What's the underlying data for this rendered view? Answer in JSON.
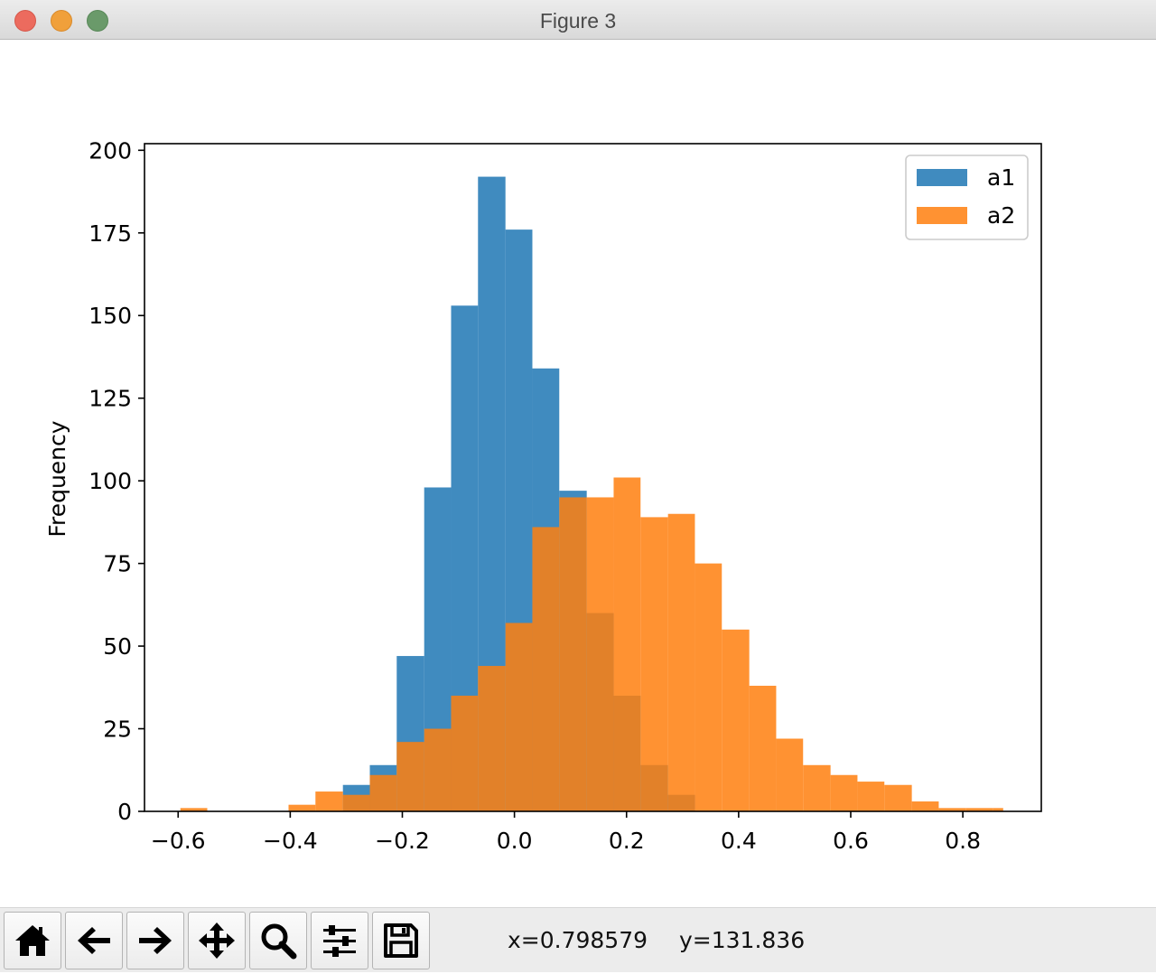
{
  "window": {
    "title": "Figure 3"
  },
  "toolbar": {
    "buttons": [
      {
        "name": "home-icon"
      },
      {
        "name": "back-arrow-icon"
      },
      {
        "name": "forward-arrow-icon"
      },
      {
        "name": "pan-move-icon"
      },
      {
        "name": "zoom-magnifier-icon"
      },
      {
        "name": "configure-subplots-icon"
      },
      {
        "name": "save-floppy-icon"
      }
    ],
    "x_readout": "x=0.798579",
    "y_readout": "y=131.836"
  },
  "chart_data": {
    "type": "bar",
    "title": "",
    "xlabel": "",
    "ylabel": "Frequency",
    "xlim": [
      -0.66,
      0.94
    ],
    "ylim": [
      0,
      202
    ],
    "xticks": [
      {
        "value": -0.6,
        "label": "−0.6"
      },
      {
        "value": -0.4,
        "label": "−0.4"
      },
      {
        "value": -0.2,
        "label": "−0.2"
      },
      {
        "value": 0.0,
        "label": "0.0"
      },
      {
        "value": 0.2,
        "label": "0.2"
      },
      {
        "value": 0.4,
        "label": "0.4"
      },
      {
        "value": 0.6,
        "label": "0.6"
      },
      {
        "value": 0.8,
        "label": "0.8"
      }
    ],
    "yticks": [
      {
        "value": 0,
        "label": "0"
      },
      {
        "value": 25,
        "label": "25"
      },
      {
        "value": 50,
        "label": "50"
      },
      {
        "value": 75,
        "label": "75"
      },
      {
        "value": 100,
        "label": "100"
      },
      {
        "value": 125,
        "label": "125"
      },
      {
        "value": 150,
        "label": "150"
      },
      {
        "value": 175,
        "label": "175"
      },
      {
        "value": 200,
        "label": "200"
      }
    ],
    "grid": false,
    "legend_position": "top-right",
    "bin_edges": [
      -0.596,
      -0.548,
      -0.5,
      -0.451,
      -0.403,
      -0.355,
      -0.306,
      -0.258,
      -0.21,
      -0.161,
      -0.113,
      -0.065,
      -0.016,
      0.032,
      0.08,
      0.129,
      0.177,
      0.225,
      0.274,
      0.322,
      0.37,
      0.419,
      0.467,
      0.515,
      0.564,
      0.612,
      0.66,
      0.709,
      0.757,
      0.805,
      0.854,
      0.872
    ],
    "series": [
      {
        "name": "a1",
        "color": "#1f77b4",
        "alpha": 0.85,
        "bins": [
          {
            "x0": -0.306,
            "x1": -0.258,
            "value": 8
          },
          {
            "x0": -0.258,
            "x1": -0.21,
            "value": 14
          },
          {
            "x0": -0.21,
            "x1": -0.161,
            "value": 47
          },
          {
            "x0": -0.161,
            "x1": -0.113,
            "value": 98
          },
          {
            "x0": -0.113,
            "x1": -0.065,
            "value": 153
          },
          {
            "x0": -0.065,
            "x1": -0.016,
            "value": 192
          },
          {
            "x0": -0.016,
            "x1": 0.032,
            "value": 176
          },
          {
            "x0": 0.032,
            "x1": 0.08,
            "value": 134
          },
          {
            "x0": 0.08,
            "x1": 0.129,
            "value": 97
          },
          {
            "x0": 0.129,
            "x1": 0.177,
            "value": 60
          },
          {
            "x0": 0.177,
            "x1": 0.225,
            "value": 35
          },
          {
            "x0": 0.225,
            "x1": 0.274,
            "value": 14
          },
          {
            "x0": 0.274,
            "x1": 0.322,
            "value": 5
          }
        ]
      },
      {
        "name": "a2",
        "color": "#ff7f0e",
        "alpha": 0.85,
        "bins": [
          {
            "x0": -0.596,
            "x1": -0.548,
            "value": 1
          },
          {
            "x0": -0.403,
            "x1": -0.355,
            "value": 2
          },
          {
            "x0": -0.355,
            "x1": -0.306,
            "value": 6
          },
          {
            "x0": -0.306,
            "x1": -0.258,
            "value": 5
          },
          {
            "x0": -0.258,
            "x1": -0.21,
            "value": 11
          },
          {
            "x0": -0.21,
            "x1": -0.161,
            "value": 21
          },
          {
            "x0": -0.161,
            "x1": -0.113,
            "value": 25
          },
          {
            "x0": -0.113,
            "x1": -0.065,
            "value": 35
          },
          {
            "x0": -0.065,
            "x1": -0.016,
            "value": 44
          },
          {
            "x0": -0.016,
            "x1": 0.032,
            "value": 57
          },
          {
            "x0": 0.032,
            "x1": 0.08,
            "value": 86
          },
          {
            "x0": 0.08,
            "x1": 0.129,
            "value": 95
          },
          {
            "x0": 0.129,
            "x1": 0.177,
            "value": 95
          },
          {
            "x0": 0.177,
            "x1": 0.225,
            "value": 101
          },
          {
            "x0": 0.225,
            "x1": 0.274,
            "value": 89
          },
          {
            "x0": 0.274,
            "x1": 0.322,
            "value": 90
          },
          {
            "x0": 0.322,
            "x1": 0.37,
            "value": 75
          },
          {
            "x0": 0.37,
            "x1": 0.419,
            "value": 55
          },
          {
            "x0": 0.419,
            "x1": 0.467,
            "value": 38
          },
          {
            "x0": 0.467,
            "x1": 0.515,
            "value": 22
          },
          {
            "x0": 0.515,
            "x1": 0.564,
            "value": 14
          },
          {
            "x0": 0.564,
            "x1": 0.612,
            "value": 11
          },
          {
            "x0": 0.612,
            "x1": 0.66,
            "value": 9
          },
          {
            "x0": 0.66,
            "x1": 0.709,
            "value": 8
          },
          {
            "x0": 0.709,
            "x1": 0.757,
            "value": 3
          },
          {
            "x0": 0.757,
            "x1": 0.805,
            "value": 1
          },
          {
            "x0": 0.805,
            "x1": 0.854,
            "value": 1
          },
          {
            "x0": 0.854,
            "x1": 0.872,
            "value": 1
          }
        ]
      }
    ]
  }
}
